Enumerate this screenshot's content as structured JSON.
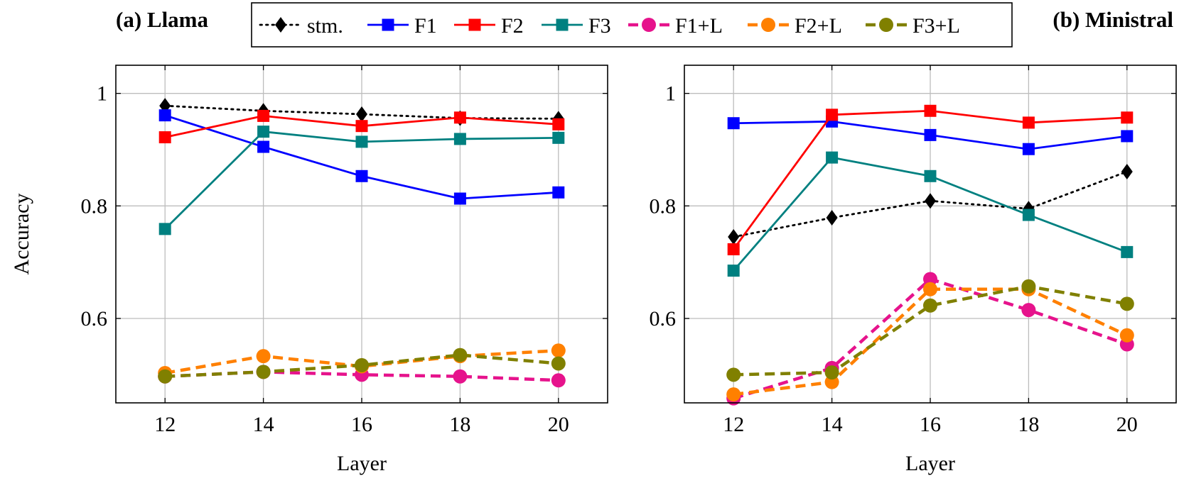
{
  "legend": {
    "placement": "top-center",
    "entries": [
      {
        "label": "stm.",
        "color": "#000000",
        "marker": "diamond",
        "dash": "dotted"
      },
      {
        "label": "F1",
        "color": "#0000ff",
        "marker": "square",
        "dash": "solid"
      },
      {
        "label": "F2",
        "color": "#ff0000",
        "marker": "square",
        "dash": "solid"
      },
      {
        "label": "F3",
        "color": "#008080",
        "marker": "square",
        "dash": "solid"
      },
      {
        "label": "F1+L",
        "color": "#e6138c",
        "marker": "circle",
        "dash": "dashed"
      },
      {
        "label": "F2+L",
        "color": "#ff8000",
        "marker": "circle",
        "dash": "dashed"
      },
      {
        "label": "F3+L",
        "color": "#808000",
        "marker": "circle",
        "dash": "dashed"
      }
    ]
  },
  "chart_data": [
    {
      "type": "line",
      "title": "(a) Llama",
      "xlabel": "Layer",
      "ylabel": "Accuracy",
      "x": [
        12,
        14,
        16,
        18,
        20
      ],
      "xlim": [
        11,
        21
      ],
      "ylim": [
        0.45,
        1.05
      ],
      "xticks": [
        "12",
        "14",
        "16",
        "18",
        "20"
      ],
      "yticks": [
        {
          "value": 0.6,
          "label": "0.6"
        },
        {
          "value": 0.8,
          "label": "0.8"
        },
        {
          "value": 1.0,
          "label": "1"
        }
      ],
      "grid": true,
      "series": [
        {
          "name": "stm.",
          "values": [
            0.978,
            0.969,
            0.963,
            0.956,
            0.955
          ]
        },
        {
          "name": "F1",
          "values": [
            0.961,
            0.905,
            0.853,
            0.813,
            0.824
          ]
        },
        {
          "name": "F2",
          "values": [
            0.922,
            0.96,
            0.942,
            0.957,
            0.945
          ]
        },
        {
          "name": "F3",
          "values": [
            0.759,
            0.932,
            0.914,
            0.919,
            0.921
          ]
        },
        {
          "name": "F1+L",
          "values": [
            0.497,
            0.505,
            0.5,
            0.497,
            0.49
          ]
        },
        {
          "name": "F2+L",
          "values": [
            0.503,
            0.533,
            0.515,
            0.533,
            0.543
          ]
        },
        {
          "name": "F3+L",
          "values": [
            0.497,
            0.505,
            0.517,
            0.535,
            0.52
          ]
        }
      ]
    },
    {
      "type": "line",
      "title": "(b) Ministral",
      "xlabel": "Layer",
      "ylabel": "",
      "x": [
        12,
        14,
        16,
        18,
        20
      ],
      "xlim": [
        11,
        21
      ],
      "ylim": [
        0.45,
        1.05
      ],
      "xticks": [
        "12",
        "14",
        "16",
        "18",
        "20"
      ],
      "yticks": [
        {
          "value": 0.6,
          "label": "0.6"
        },
        {
          "value": 0.8,
          "label": "0.8"
        },
        {
          "value": 1.0,
          "label": "1"
        }
      ],
      "grid": true,
      "series": [
        {
          "name": "stm.",
          "values": [
            0.745,
            0.779,
            0.809,
            0.795,
            0.861
          ]
        },
        {
          "name": "F1",
          "values": [
            0.947,
            0.95,
            0.926,
            0.901,
            0.924
          ]
        },
        {
          "name": "F2",
          "values": [
            0.723,
            0.962,
            0.969,
            0.948,
            0.957
          ]
        },
        {
          "name": "F3",
          "values": [
            0.685,
            0.886,
            0.853,
            0.784,
            0.718
          ]
        },
        {
          "name": "F1+L",
          "values": [
            0.458,
            0.512,
            0.67,
            0.615,
            0.554
          ]
        },
        {
          "name": "F2+L",
          "values": [
            0.465,
            0.487,
            0.652,
            0.652,
            0.57
          ]
        },
        {
          "name": "F3+L",
          "values": [
            0.5,
            0.504,
            0.623,
            0.657,
            0.626
          ]
        }
      ]
    }
  ]
}
